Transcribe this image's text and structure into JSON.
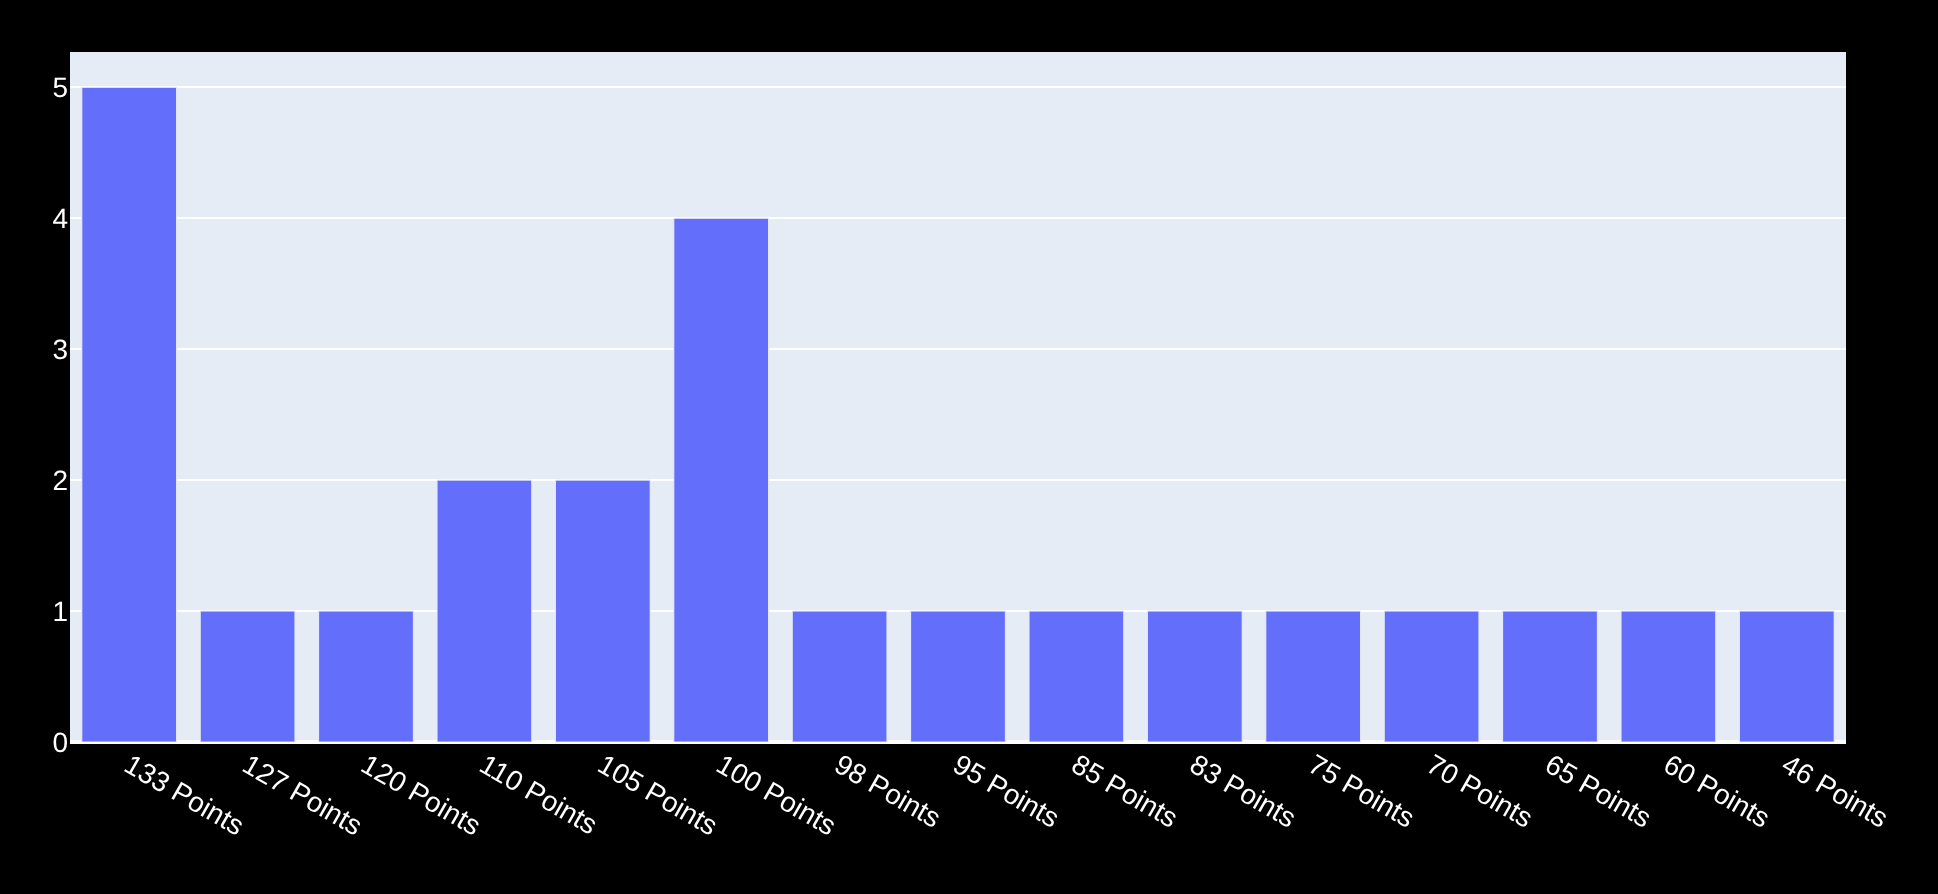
{
  "chart_data": {
    "type": "bar",
    "categories": [
      "133 Points",
      "127 Points",
      "120 Points",
      "110 Points",
      "105 Points",
      "100 Points",
      "98 Points",
      "95 Points",
      "85 Points",
      "83 Points",
      "75 Points",
      "70 Points",
      "65 Points",
      "60 Points",
      "46 Points"
    ],
    "values": [
      5,
      1,
      1,
      2,
      2,
      4,
      1,
      1,
      1,
      1,
      1,
      1,
      1,
      1,
      1
    ],
    "color": "#636efa",
    "ylim": [
      0,
      5.27
    ],
    "yticks": [
      0,
      1,
      2,
      3,
      4,
      5
    ],
    "grid": "y",
    "legend": false
  }
}
